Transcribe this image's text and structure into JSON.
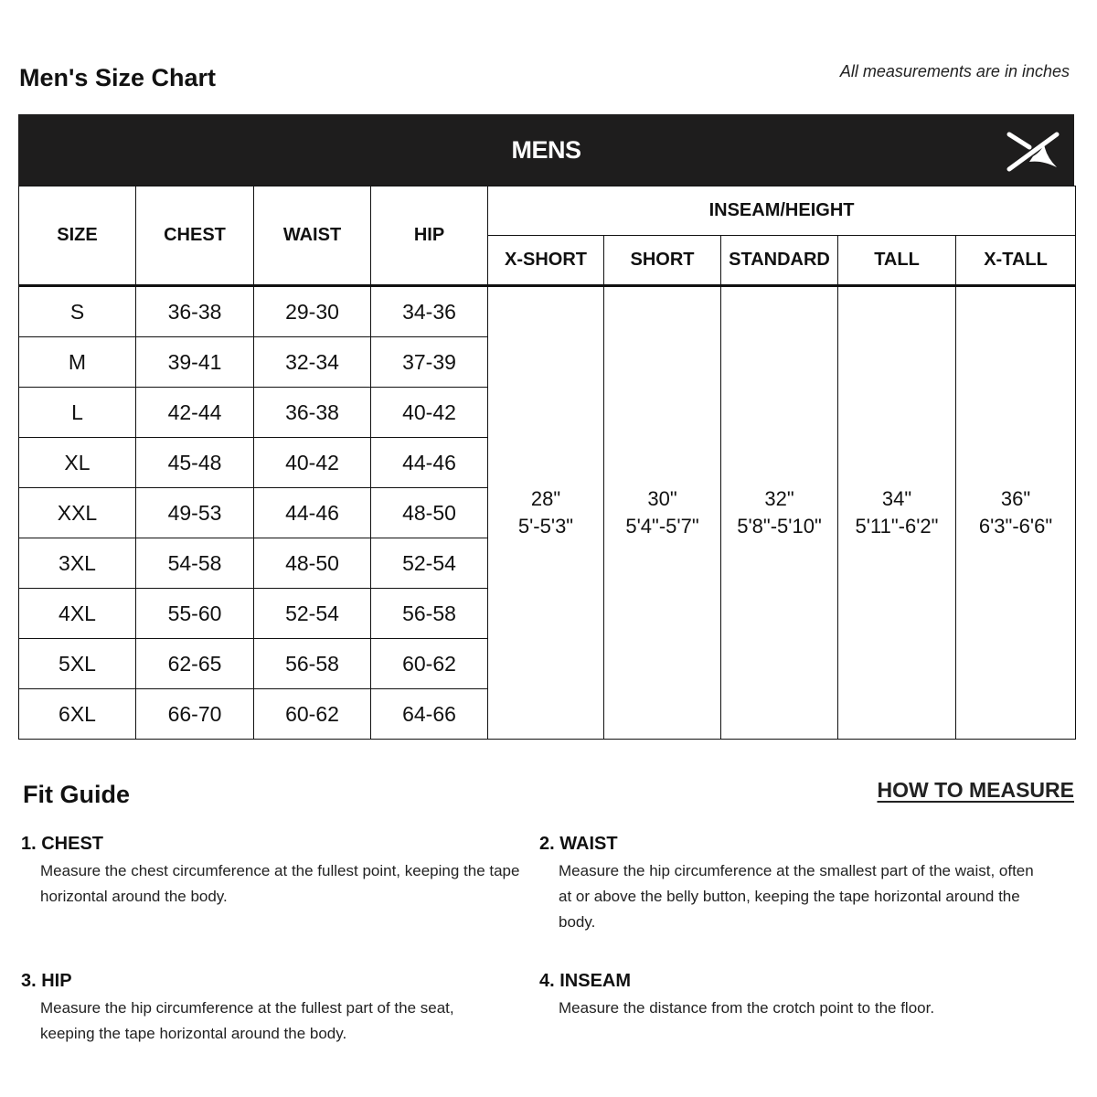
{
  "title": "Men's Size Chart",
  "note": "All measurements are in inches",
  "band": {
    "label": "MENS",
    "logo_icon": "brand-x-logo-icon"
  },
  "headers": {
    "size": "SIZE",
    "chest": "CHEST",
    "waist": "WAIST",
    "hip": "HIP",
    "inseam": "INSEAM/HEIGHT",
    "inseam_cols": [
      "X-SHORT",
      "SHORT",
      "STANDARD",
      "TALL",
      "X-TALL"
    ]
  },
  "rows": [
    {
      "size": "S",
      "chest": "36-38",
      "waist": "29-30",
      "hip": "34-36"
    },
    {
      "size": "M",
      "chest": "39-41",
      "waist": "32-34",
      "hip": "37-39"
    },
    {
      "size": "L",
      "chest": "42-44",
      "waist": "36-38",
      "hip": "40-42"
    },
    {
      "size": "XL",
      "chest": "45-48",
      "waist": "40-42",
      "hip": "44-46"
    },
    {
      "size": "XXL",
      "chest": "49-53",
      "waist": "44-46",
      "hip": "48-50"
    },
    {
      "size": "3XL",
      "chest": "54-58",
      "waist": "48-50",
      "hip": "52-54"
    },
    {
      "size": "4XL",
      "chest": "55-60",
      "waist": "52-54",
      "hip": "56-58"
    },
    {
      "size": "5XL",
      "chest": "62-65",
      "waist": "56-58",
      "hip": "60-62"
    },
    {
      "size": "6XL",
      "chest": "66-70",
      "waist": "60-62",
      "hip": "64-66"
    }
  ],
  "inseam": [
    {
      "inseam": "28\"",
      "height": "5'-5'3\""
    },
    {
      "inseam": "30\"",
      "height": "5'4\"-5'7\""
    },
    {
      "inseam": "32\"",
      "height": "5'8\"-5'10\""
    },
    {
      "inseam": "34\"",
      "height": "5'11\"-6'2\""
    },
    {
      "inseam": "36\"",
      "height": "6'3\"-6'6\""
    }
  ],
  "fit": {
    "title": "Fit Guide",
    "how_link": "HOW TO MEASURE",
    "items": [
      {
        "heading": "1. CHEST",
        "text": "Measure the chest circumference at the fullest point, keeping the tape horizontal around the body."
      },
      {
        "heading": "2. WAIST",
        "text": "Measure the hip circumference at the smallest part of the waist, often at or above the belly button, keeping the tape horizontal around the body."
      },
      {
        "heading": "3. HIP",
        "text": "Measure the hip circumference at the fullest part of the seat, keeping the tape horizontal around the body."
      },
      {
        "heading": "4. INSEAM",
        "text": "Measure the distance from the crotch point to the floor."
      }
    ]
  }
}
